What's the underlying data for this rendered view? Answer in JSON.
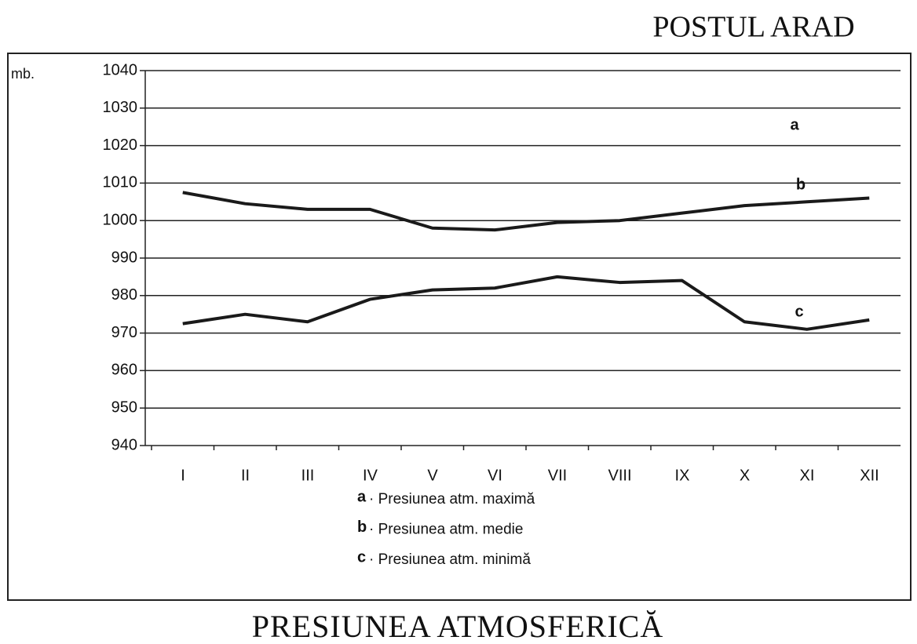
{
  "chart_data": {
    "type": "line",
    "title": "POSTUL ARAD",
    "subtitle": "PRESIUNEA ATMOSFERICĂ",
    "y_label": "mb.",
    "categories": [
      "I",
      "II",
      "III",
      "IV",
      "V",
      "VI",
      "VII",
      "VIII",
      "IX",
      "X",
      "XI",
      "XII"
    ],
    "series": [
      {
        "name": "b",
        "color": "#1a1a1a",
        "values": [
          1007.5,
          1004.5,
          1003,
          1003,
          998,
          997.5,
          999.5,
          1000,
          1002,
          1004,
          1005,
          1006
        ]
      },
      {
        "name": "c",
        "color": "#1a1a1a",
        "values": [
          972.5,
          975,
          973,
          979,
          981.5,
          982,
          985,
          983.5,
          984,
          973,
          971,
          973.5
        ]
      }
    ],
    "annotations": [
      "a",
      "b",
      "c"
    ],
    "legend": [
      {
        "key": "a",
        "text": "· Presiunea atm. maximă"
      },
      {
        "key": "b",
        "text": "· Presiunea atm. medie"
      },
      {
        "key": "c",
        "text": "· Presiunea atm. minimă"
      }
    ],
    "ylim": [
      940,
      1040
    ],
    "yticks": [
      940,
      950,
      960,
      970,
      980,
      990,
      1000,
      1010,
      1020,
      1030,
      1040
    ],
    "grid": true
  }
}
